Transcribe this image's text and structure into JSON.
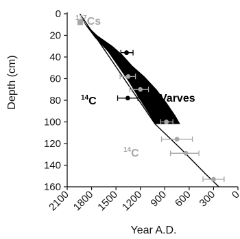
{
  "chart_data": {
    "type": "scatter",
    "xlabel": "Year A.D.",
    "ylabel": "Depth (cm)",
    "xlim": [
      2100,
      0
    ],
    "ylim": [
      0,
      160
    ],
    "x_ticks": [
      "2100",
      "1800",
      "1500",
      "1200",
      "900",
      "600",
      "300",
      "0"
    ],
    "x_tick_values": [
      2100,
      1800,
      1500,
      1200,
      900,
      600,
      300,
      0
    ],
    "y_ticks": [
      "0",
      "20",
      "40",
      "60",
      "80",
      "100",
      "120",
      "140",
      "160"
    ],
    "y_tick_values": [
      0,
      20,
      40,
      60,
      80,
      100,
      120,
      140,
      160
    ],
    "grid": false,
    "colors": {
      "black": "#000000",
      "gray": "#a6a6a6",
      "axis": "#111111"
    },
    "annotations": {
      "cs": {
        "sup": "137",
        "text": "Cs"
      },
      "c14_black": {
        "sup": "14",
        "text": "C"
      },
      "varves": {
        "text": "Varves"
      },
      "c14_gray": {
        "sup": "14",
        "text": "C"
      }
    },
    "series": [
      {
        "kind": "band",
        "color": "#000000",
        "upper_edge": [
          [
            1945,
            0
          ],
          [
            1880,
            10
          ],
          [
            1760,
            22
          ],
          [
            1600,
            35
          ],
          [
            1480,
            48
          ],
          [
            1350,
            62
          ],
          [
            1220,
            78
          ],
          [
            1100,
            92
          ],
          [
            1020,
            102
          ]
        ],
        "lower_edge": [
          [
            1945,
            0
          ],
          [
            1870,
            10
          ],
          [
            1730,
            20
          ],
          [
            1540,
            30
          ],
          [
            1420,
            38
          ],
          [
            1300,
            48
          ],
          [
            1150,
            58
          ],
          [
            1000,
            70
          ],
          [
            880,
            82
          ],
          [
            770,
            94
          ],
          [
            710,
            102
          ]
        ]
      },
      {
        "kind": "line",
        "color": "#000000",
        "points": [
          [
            1945,
            0
          ],
          [
            1020,
            102
          ],
          [
            700,
            125
          ],
          [
            400,
            148
          ],
          [
            180,
            164
          ]
        ]
      },
      {
        "kind": "points",
        "color": "#a6a6a6",
        "marker": "square",
        "points": [
          {
            "x": 1940,
            "y": 8
          }
        ]
      },
      {
        "kind": "points",
        "color": "#000000",
        "marker": "circle",
        "points": [
          {
            "x": 1370,
            "y": 36,
            "xlo": 1440,
            "xhi": 1290
          },
          {
            "x": 1430,
            "y": 45,
            "xlo": 1470,
            "xhi": 1390
          },
          {
            "x": 1355,
            "y": 78,
            "xlo": 1480,
            "xhi": 1230
          }
        ]
      },
      {
        "kind": "points",
        "color": "#a6a6a6",
        "marker": "circle",
        "points": [
          {
            "x": 1350,
            "y": 58,
            "xlo": 1450,
            "xhi": 1260
          },
          {
            "x": 1200,
            "y": 70,
            "xlo": 1330,
            "xhi": 1100
          },
          {
            "x": 880,
            "y": 100,
            "xlo": 950,
            "xhi": 800
          },
          {
            "x": 750,
            "y": 116,
            "xlo": 940,
            "xhi": 560
          },
          {
            "x": 640,
            "y": 129,
            "xlo": 830,
            "xhi": 480
          },
          {
            "x": 300,
            "y": 153,
            "xlo": 430,
            "xhi": 170
          }
        ]
      }
    ]
  }
}
